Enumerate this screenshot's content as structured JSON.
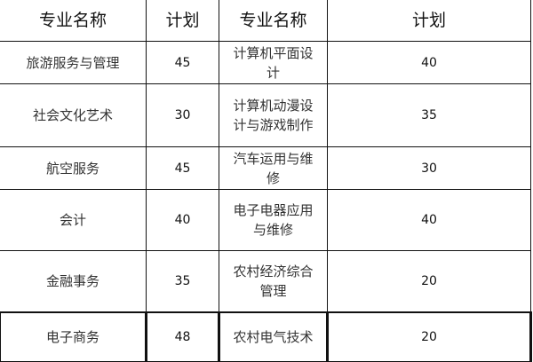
{
  "headers": [
    "专业名称",
    "计划",
    "专业名称",
    "计划"
  ],
  "rows": [
    {
      "major_left": "旅游服务与管理",
      "plan_left": "45",
      "major_right": "计算机平面设计",
      "plan_right": "40"
    },
    {
      "major_left": "社会文化艺术",
      "plan_left": "30",
      "major_right": "计算机动漫设计与游戏制作",
      "plan_right": "35"
    },
    {
      "major_left": "航空服务",
      "plan_left": "45",
      "major_right": "汽车运用与维修",
      "plan_right": "30"
    },
    {
      "major_left": "会计",
      "plan_left": "40",
      "major_right": "电子电器应用与维修",
      "plan_right": "40"
    },
    {
      "major_left": "金融事务",
      "plan_left": "35",
      "major_right": "农村经济综合管理",
      "plan_right": "20"
    },
    {
      "major_left": "电子商务",
      "plan_left": "48",
      "major_right": "农村电气技术",
      "plan_right": "20"
    }
  ]
}
